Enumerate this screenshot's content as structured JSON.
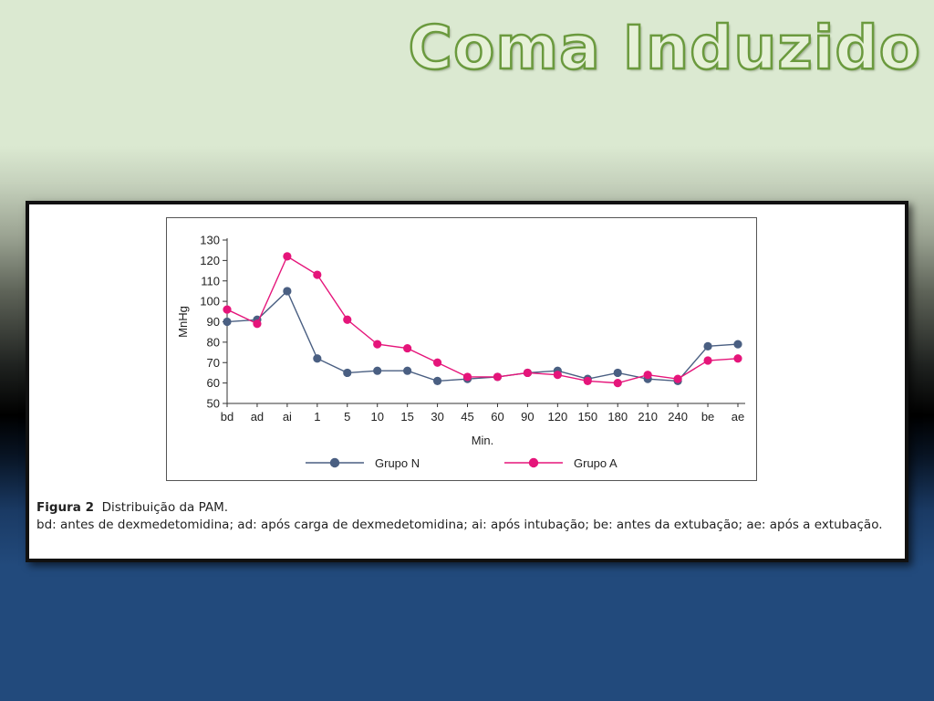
{
  "slide": {
    "title": "Coma Induzido"
  },
  "figure": {
    "label": "Figura 2",
    "title": "Distribuição da PAM.",
    "note": "bd: antes de dexmedetomidina; ad: após carga de dexmedetomidina; ai: após intubação; be: antes da extubação; ae: após a extubação."
  },
  "colors": {
    "grupo_n": "#4a5f82",
    "grupo_a": "#e5157a",
    "axis": "#333333",
    "title_fill": "#e6f1d8",
    "title_stroke": "#6b9a3e"
  },
  "chart_data": {
    "type": "line",
    "title": "",
    "xlabel": "Min.",
    "ylabel": "MnHg",
    "categories": [
      "bd",
      "ad",
      "ai",
      "1",
      "5",
      "10",
      "15",
      "30",
      "45",
      "60",
      "90",
      "120",
      "150",
      "180",
      "210",
      "240",
      "be",
      "ae"
    ],
    "yticks": [
      50,
      60,
      70,
      80,
      90,
      100,
      110,
      120,
      130
    ],
    "ylim": [
      50,
      130
    ],
    "grid": false,
    "legend_position": "bottom",
    "series": [
      {
        "name": "Grupo N",
        "color": "#4a5f82",
        "values": [
          90,
          91,
          105,
          72,
          65,
          66,
          66,
          61,
          62,
          63,
          65,
          66,
          62,
          65,
          62,
          61,
          78,
          79
        ]
      },
      {
        "name": "Grupo A",
        "color": "#e5157a",
        "values": [
          96,
          89,
          122,
          113,
          91,
          79,
          77,
          70,
          63,
          63,
          65,
          64,
          61,
          60,
          64,
          62,
          71,
          72
        ]
      }
    ]
  }
}
